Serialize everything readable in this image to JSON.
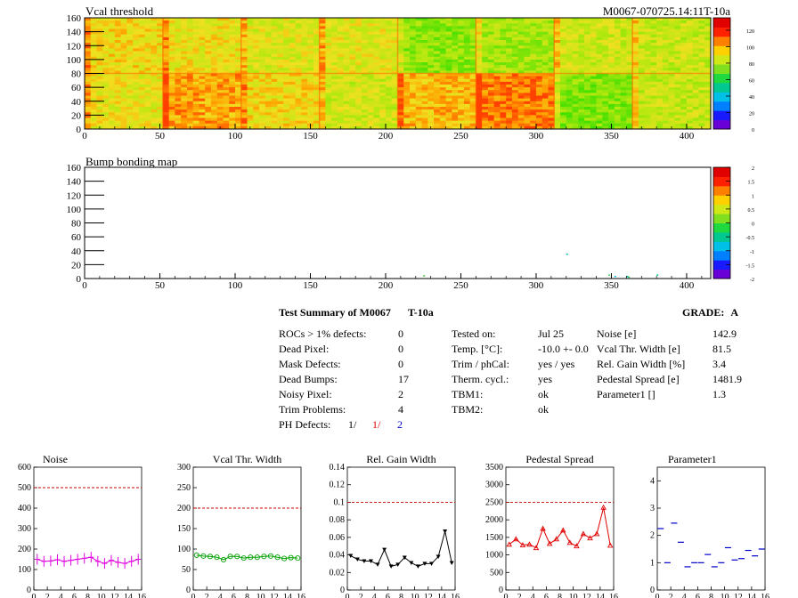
{
  "maps": {
    "vcal": {
      "title": "Vcal threshold",
      "subtitle": "M0067-070725.14:11T-10a",
      "x_ticks": [
        "0",
        "50",
        "100",
        "150",
        "200",
        "250",
        "300",
        "350",
        "400"
      ],
      "y_ticks": [
        "0",
        "20",
        "40",
        "60",
        "80",
        "100",
        "120",
        "140",
        "160"
      ],
      "palette_ticks": [
        "0",
        "20",
        "40",
        "60",
        "80",
        "100",
        "120"
      ]
    },
    "bump": {
      "title": "Bump bonding map",
      "x_ticks": [
        "0",
        "50",
        "100",
        "150",
        "200",
        "250",
        "300",
        "350",
        "400"
      ],
      "y_ticks": [
        "0",
        "20",
        "40",
        "60",
        "80",
        "100",
        "120",
        "140",
        "160"
      ],
      "palette_ticks": [
        "-2",
        "-1.5",
        "-1",
        "-0.5",
        "0",
        "0.5",
        "1",
        "1.5",
        "2"
      ]
    }
  },
  "summary": {
    "title": "Test Summary of M0067",
    "test": "T-10a",
    "grade_label": "GRADE:",
    "grade": "A",
    "col1": [
      {
        "label": "ROCs > 1% defects:",
        "value": "0"
      },
      {
        "label": "Dead Pixel:",
        "value": "0"
      },
      {
        "label": "Mask Defects:",
        "value": "0"
      },
      {
        "label": "Dead Bumps:",
        "value": "17"
      },
      {
        "label": "Noisy Pixel:",
        "value": "2"
      },
      {
        "label": "Trim Problems:",
        "value": "4"
      }
    ],
    "ph": {
      "label": "PH Defects:",
      "v1": "1/",
      "v2": "1/",
      "v3": "2"
    },
    "col2": [
      {
        "label": "Tested on:",
        "value": "Jul 25"
      },
      {
        "label": "Temp. [°C]:",
        "value": "-10.0 +- 0.0"
      },
      {
        "label": "Trim / phCal:",
        "value": "yes / yes"
      },
      {
        "label": "Therm. cycl.:",
        "value": "yes"
      },
      {
        "label": "TBM1:",
        "value": "ok"
      },
      {
        "label": "TBM2:",
        "value": "ok"
      }
    ],
    "col3": [
      {
        "label": "Noise [e]",
        "value": "142.9"
      },
      {
        "label": "Vcal Thr. Width [e]",
        "value": "81.5"
      },
      {
        "label": "Rel. Gain Width [%]",
        "value": "3.4"
      },
      {
        "label": "Pedestal Spread [e]",
        "value": "1481.9"
      },
      {
        "label": "Parameter1 []",
        "value": "1.3"
      }
    ]
  },
  "chart_data": [
    {
      "type": "line",
      "title": "Noise",
      "color": "#e000e0",
      "ylim": [
        0,
        600
      ],
      "ref": 500,
      "y_ticks": [
        "0",
        "100",
        "200",
        "300",
        "400",
        "500",
        "600"
      ],
      "x_ticks": [
        "0",
        "2",
        "4",
        "6",
        "8",
        "10",
        "12",
        "14",
        "16"
      ],
      "values": [
        150,
        140,
        142,
        148,
        140,
        145,
        150,
        155,
        160,
        140,
        130,
        145,
        135,
        130,
        140,
        150
      ]
    },
    {
      "type": "line",
      "title": "Vcal Thr. Width",
      "color": "#00a000",
      "ylim": [
        0,
        300
      ],
      "ref": 200,
      "y_ticks": [
        "0",
        "50",
        "100",
        "150",
        "200",
        "250",
        "300"
      ],
      "x_ticks": [
        "0",
        "2",
        "4",
        "6",
        "8",
        "10",
        "12",
        "14",
        "16"
      ],
      "values": [
        85,
        83,
        82,
        80,
        74,
        82,
        82,
        78,
        80,
        80,
        82,
        83,
        80,
        77,
        79,
        78
      ]
    },
    {
      "type": "line",
      "title": "Rel. Gain Width",
      "color": "#000000",
      "ylim": [
        0,
        0.14
      ],
      "ref": 0.1,
      "y_ticks": [
        "0",
        "0.02",
        "0.04",
        "0.06",
        "0.08",
        "0.1",
        "0.12",
        "0.14"
      ],
      "x_ticks": [
        "0",
        "2",
        "4",
        "6",
        "8",
        "10",
        "12",
        "14",
        "16"
      ],
      "values": [
        0.039,
        0.035,
        0.033,
        0.033,
        0.029,
        0.046,
        0.027,
        0.029,
        0.037,
        0.031,
        0.027,
        0.03,
        0.03,
        0.038,
        0.067,
        0.031
      ]
    },
    {
      "type": "line",
      "title": "Pedestal Spread",
      "color": "#e00000",
      "ylim": [
        0,
        3500
      ],
      "ref": 2500,
      "y_ticks": [
        "0",
        "500",
        "1000",
        "1500",
        "2000",
        "2500",
        "3000",
        "3500"
      ],
      "x_ticks": [
        "0",
        "2",
        "4",
        "6",
        "8",
        "10",
        "12",
        "14",
        "16"
      ],
      "values": [
        1300,
        1450,
        1280,
        1300,
        1200,
        1750,
        1320,
        1450,
        1700,
        1350,
        1250,
        1600,
        1480,
        1600,
        2350,
        1270
      ]
    },
    {
      "type": "scatter",
      "title": "Parameter1",
      "color": "#0000cc",
      "ylim": [
        0,
        4.5
      ],
      "ref": null,
      "y_ticks": [
        "0",
        "1",
        "2",
        "3",
        "4"
      ],
      "x_ticks": [
        "0",
        "2",
        "4",
        "6",
        "8",
        "10",
        "12",
        "14",
        "16"
      ],
      "values": [
        2.25,
        1.0,
        2.45,
        1.75,
        0.85,
        1.0,
        1.0,
        1.3,
        0.85,
        1.0,
        1.55,
        1.1,
        1.15,
        1.45,
        1.25,
        1.5
      ]
    }
  ]
}
